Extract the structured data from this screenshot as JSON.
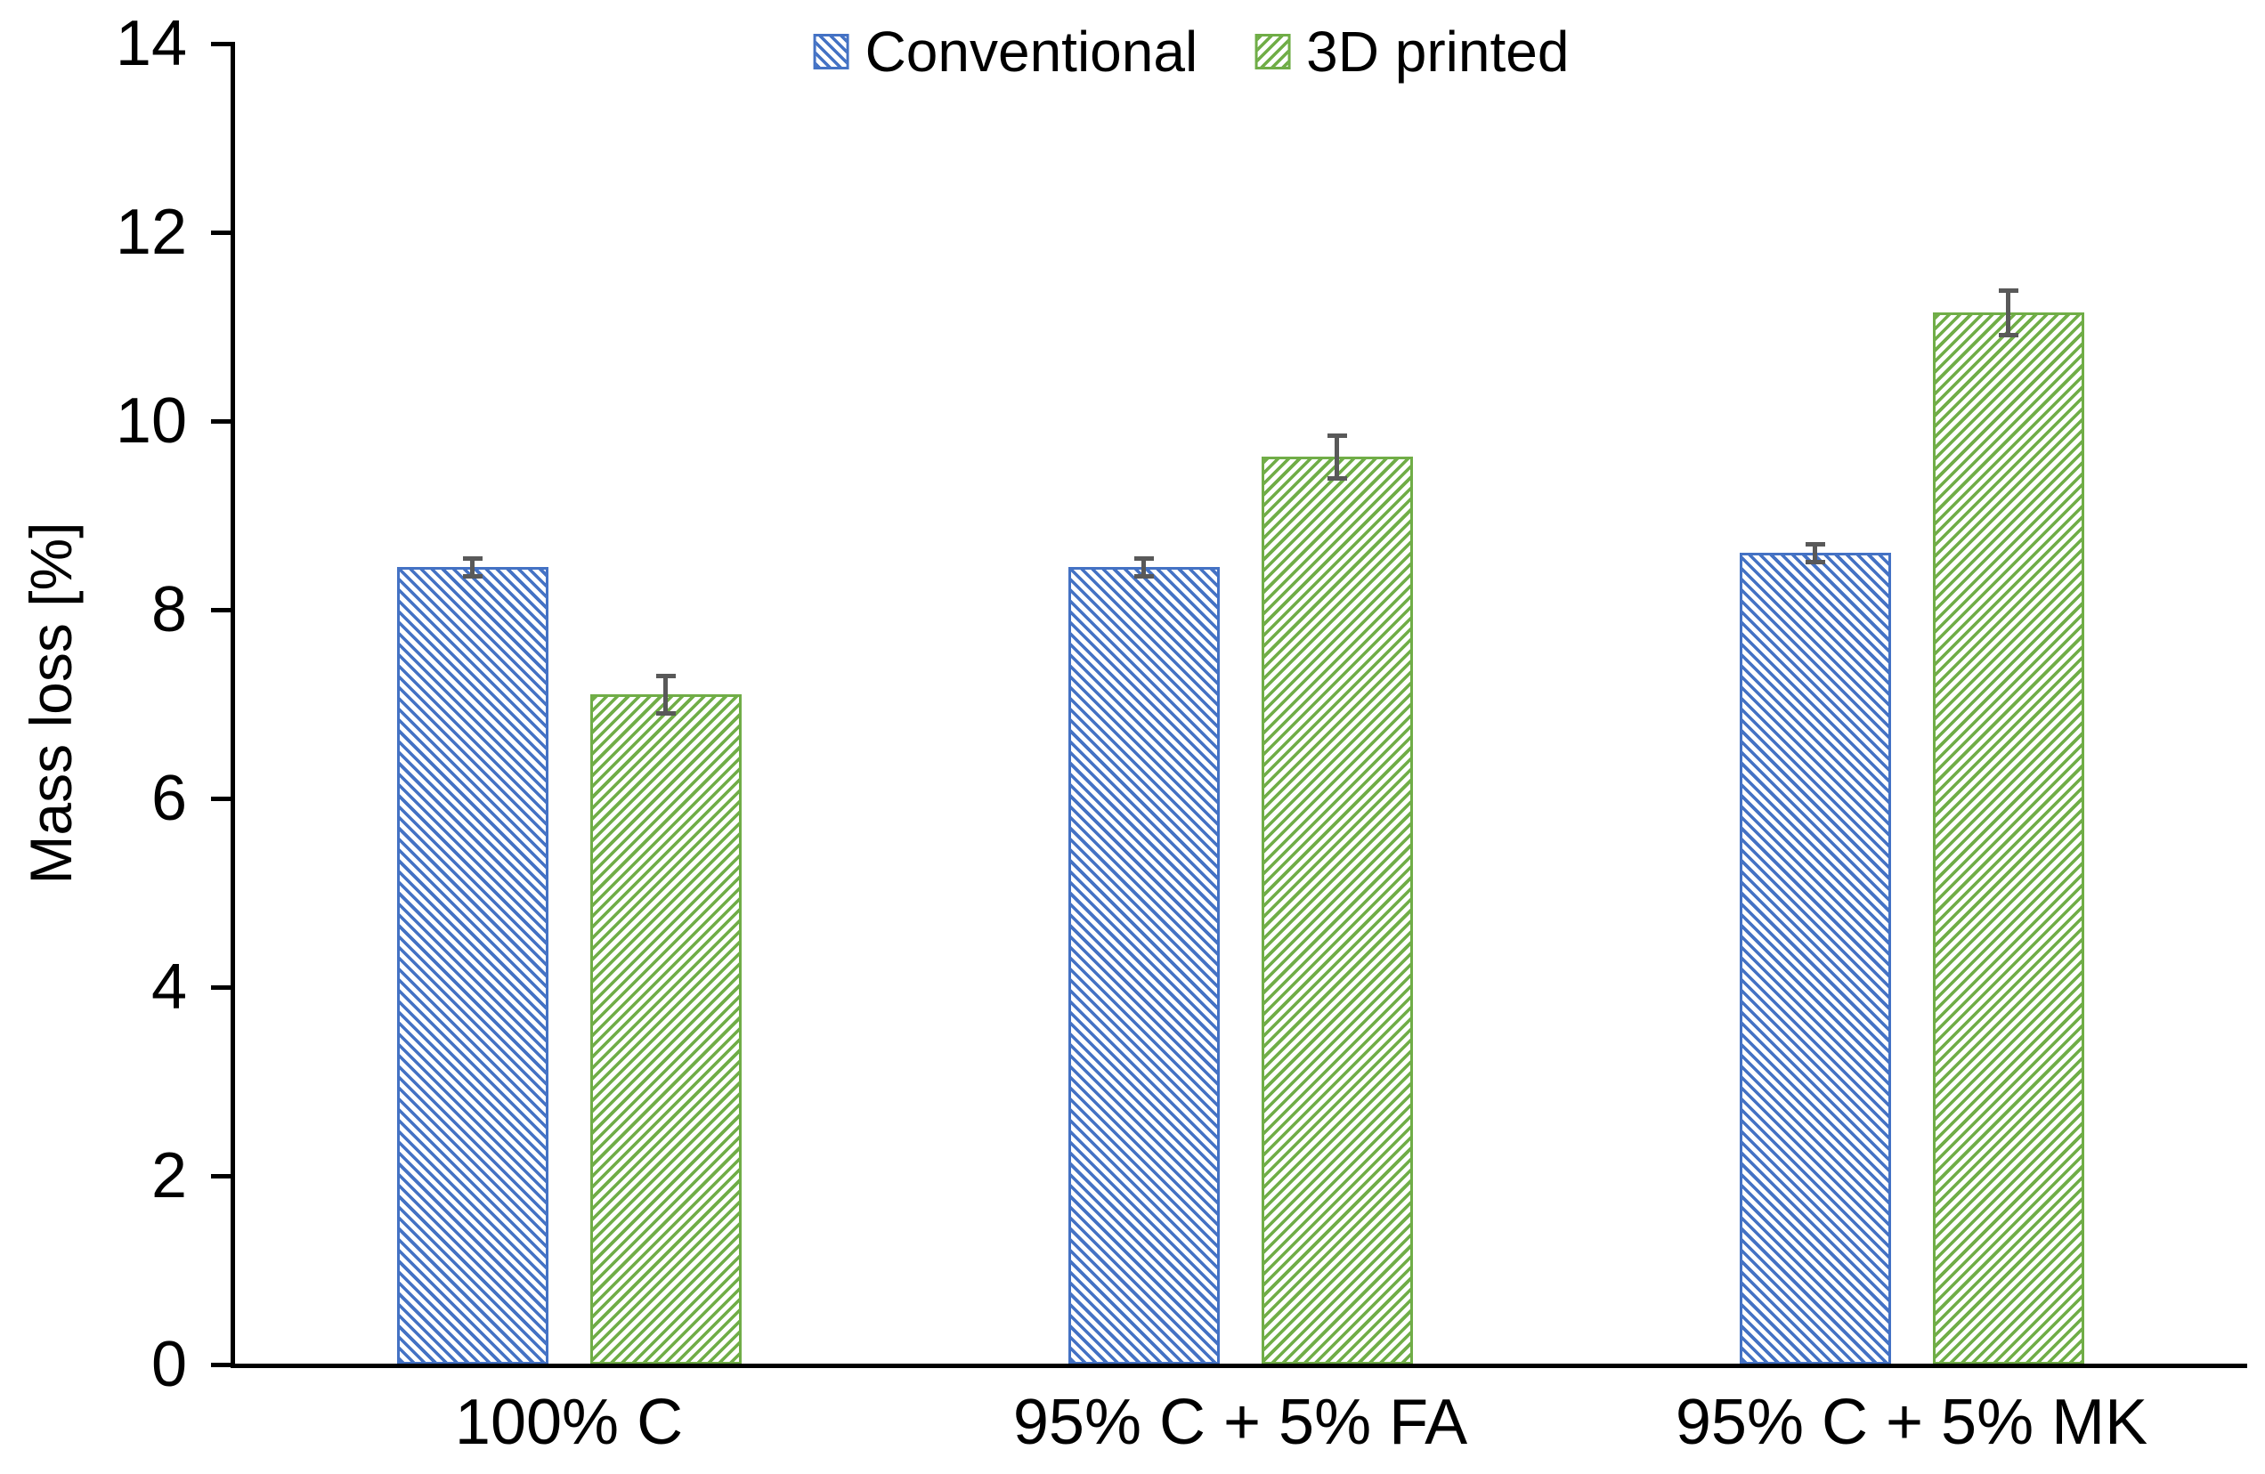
{
  "figure": {
    "background": "#ffffff",
    "axis_color": "#000000",
    "error_bar_color": "#595959"
  },
  "chart_data": {
    "type": "bar",
    "title": "",
    "xlabel": "",
    "ylabel": "Mass loss [%]",
    "categories": [
      "100% C",
      "95% C + 5% FA",
      "95% C + 5% MK"
    ],
    "series": [
      {
        "name": "Conventional",
        "color": "#4472C4",
        "hatch": "\\",
        "values": [
          8.45,
          8.45,
          8.6
        ],
        "errors": [
          0.12,
          0.12,
          0.12
        ]
      },
      {
        "name": "3D printed",
        "color": "#70AD47",
        "hatch": "/",
        "values": [
          7.1,
          9.62,
          11.15
        ],
        "errors": [
          0.22,
          0.25,
          0.26
        ]
      }
    ],
    "ylim": [
      0,
      14
    ],
    "yticks": [
      0,
      2,
      4,
      6,
      8,
      10,
      12,
      14
    ],
    "grid": false,
    "legend_position": "top-center",
    "error_bars": true
  }
}
